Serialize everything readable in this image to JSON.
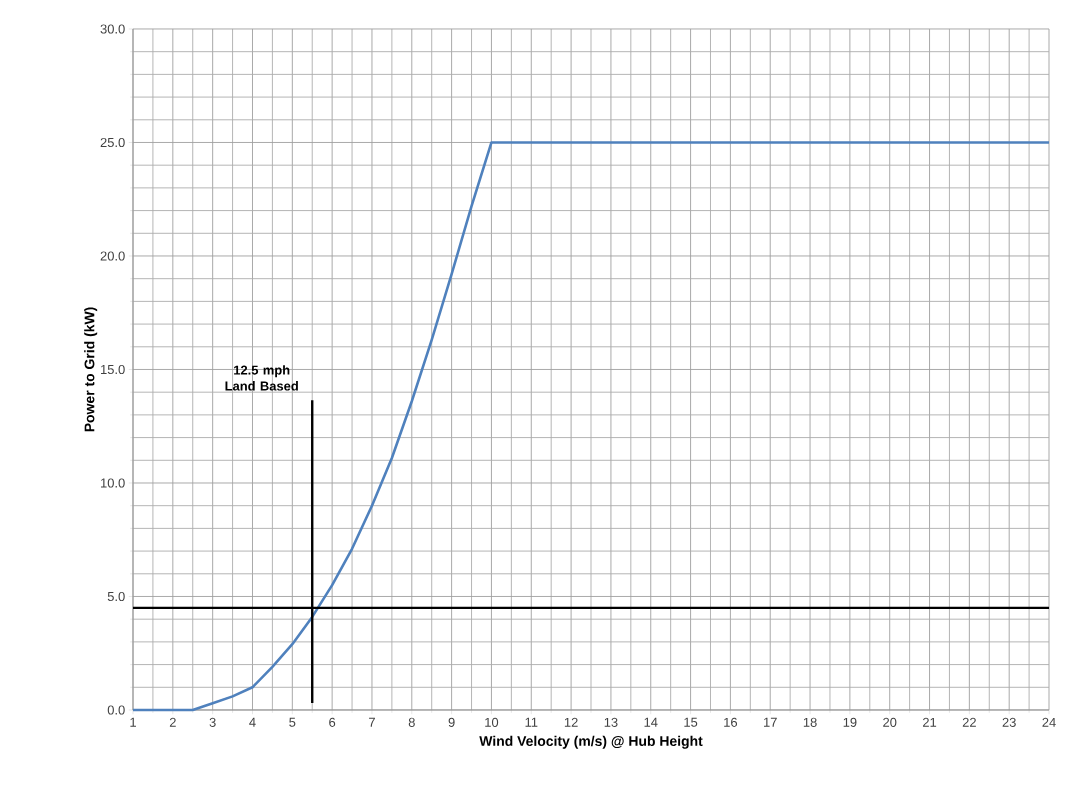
{
  "chart_data": {
    "type": "line",
    "xlabel": "Wind Velocity (m/s) @ Hub Height",
    "ylabel": "Power to Grid (kW)",
    "x": [
      1,
      2,
      2.5,
      3,
      3.5,
      4,
      4.5,
      5,
      5.5,
      6,
      6.5,
      7,
      7.5,
      8,
      8.5,
      9,
      9.5,
      10,
      24
    ],
    "series": [
      {
        "color": "#4f81bd",
        "values": [
          0,
          0,
          0,
          0.3,
          0.6,
          1.0,
          1.9,
          2.9,
          4.1,
          5.5,
          7.1,
          9.0,
          11.1,
          13.6,
          16.3,
          19.2,
          22.2,
          25,
          25
        ]
      }
    ],
    "xlim": [
      1,
      24
    ],
    "ylim": [
      0,
      30
    ],
    "xticks": [
      1,
      2,
      3,
      4,
      5,
      6,
      7,
      8,
      9,
      10,
      11,
      12,
      13,
      14,
      15,
      16,
      17,
      18,
      19,
      20,
      21,
      22,
      23,
      24
    ],
    "yticks": [
      {
        "value": 0,
        "label": "0.0"
      },
      {
        "value": 5,
        "label": "5.0"
      },
      {
        "value": 10,
        "label": "10.0"
      },
      {
        "value": 15,
        "label": "15.0"
      },
      {
        "value": 20,
        "label": "20.0"
      },
      {
        "value": 25,
        "label": "25.0"
      },
      {
        "value": 30,
        "label": "30.0"
      }
    ],
    "grid": true,
    "marker": "none",
    "line_style": "solid",
    "ref_lines": [
      {
        "axis": "x",
        "value": 5.5,
        "label": "12.5 mph Land Based",
        "color": "#000000"
      },
      {
        "axis": "y",
        "value": 4.5,
        "color": "#000000"
      }
    ]
  }
}
